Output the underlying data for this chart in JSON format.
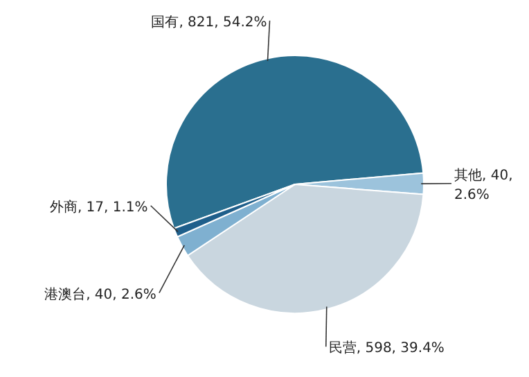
{
  "chart_data": {
    "type": "pie",
    "categories": [
      "国有",
      "其他",
      "民营",
      "港澳台",
      "外商"
    ],
    "values": [
      821,
      40,
      598,
      40,
      17
    ],
    "value_labels": [
      "821, 54.2%",
      "40, 2.6%",
      "598, 39.4%",
      "40, 2.6%",
      "17, 1.1%"
    ],
    "colors": [
      "#2a6f8f",
      "#9cc3dc",
      "#c9d6df",
      "#7fb0d0",
      "#1f5f8b"
    ]
  }
}
